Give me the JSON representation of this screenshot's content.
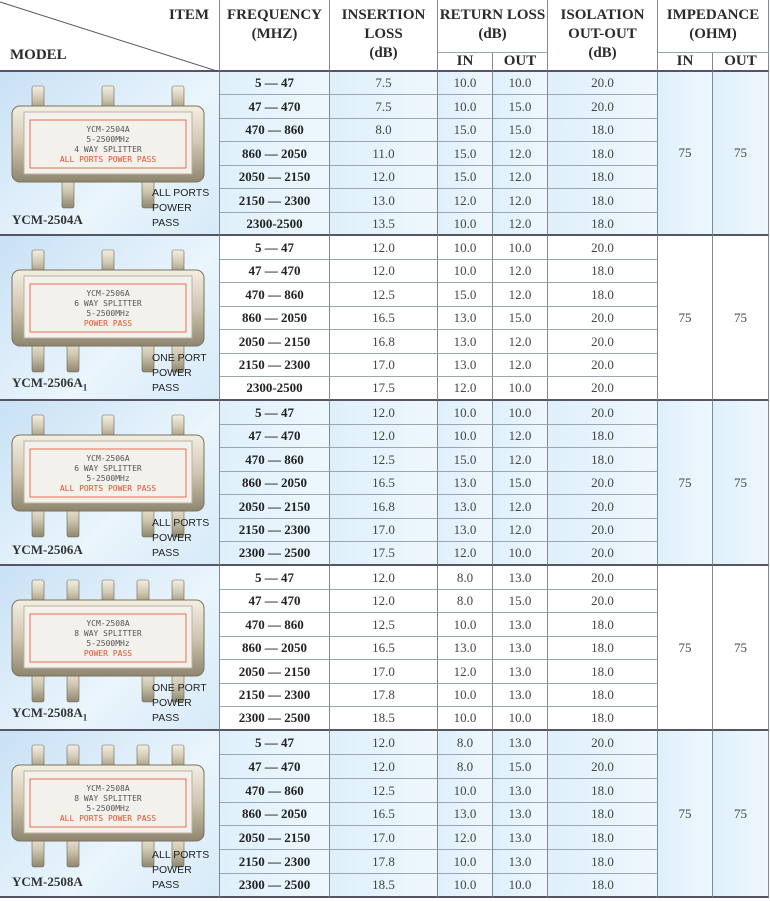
{
  "header": {
    "item": "ITEM",
    "model": "MODEL",
    "frequency": [
      "FREQUENCY",
      "(MHZ)"
    ],
    "insertion_loss": [
      "INSERTION",
      "LOSS",
      "(dB)"
    ],
    "return_loss": [
      "RETURN LOSS",
      "(dB)"
    ],
    "isolation": [
      "ISOLATION",
      "OUT-OUT",
      "(dB)"
    ],
    "impedance": [
      "IMPEDANCE",
      "(OHM)"
    ],
    "in": "IN",
    "out": "OUT"
  },
  "colors": {
    "shaded": "#dff0fb",
    "border": "#7f8a94",
    "label_red": "#e0502a"
  },
  "groups": [
    {
      "model": "YCM-2504A",
      "sub": "",
      "power_pass": [
        "ALL PORTS",
        "POWER PASS"
      ],
      "shaded": true,
      "device": {
        "top_ports": 3,
        "bottom_ports": 2,
        "label": [
          "YCM-2504A",
          "5-2500MHz",
          "4 WAY SPLITTER",
          "ALL PORTS POWER PASS"
        ]
      },
      "impedance_in": "75",
      "impedance_out": "75",
      "rows": [
        {
          "freq": "5 — 47",
          "il": "7.5",
          "rl_in": "10.0",
          "rl_out": "10.0",
          "iso": "20.0"
        },
        {
          "freq": "47 — 470",
          "il": "7.5",
          "rl_in": "10.0",
          "rl_out": "15.0",
          "iso": "20.0"
        },
        {
          "freq": "470 — 860",
          "il": "8.0",
          "rl_in": "15.0",
          "rl_out": "15.0",
          "iso": "18.0"
        },
        {
          "freq": "860 — 2050",
          "il": "11.0",
          "rl_in": "15.0",
          "rl_out": "12.0",
          "iso": "18.0"
        },
        {
          "freq": "2050 — 2150",
          "il": "12.0",
          "rl_in": "15.0",
          "rl_out": "12.0",
          "iso": "18.0"
        },
        {
          "freq": "2150 — 2300",
          "il": "13.0",
          "rl_in": "12.0",
          "rl_out": "12.0",
          "iso": "18.0"
        },
        {
          "freq": "2300-2500",
          "il": "13.5",
          "rl_in": "10.0",
          "rl_out": "12.0",
          "iso": "18.0"
        }
      ]
    },
    {
      "model": "YCM-2506A",
      "sub": "1",
      "power_pass": [
        "ONE PORT",
        "POWER PASS"
      ],
      "shaded": false,
      "device": {
        "top_ports": 3,
        "bottom_ports": 4,
        "label": [
          "YCM-2506A",
          "6 WAY SPLITTER",
          "5-2500MHz",
          "POWER PASS"
        ]
      },
      "impedance_in": "75",
      "impedance_out": "75",
      "rows": [
        {
          "freq": "5 — 47",
          "il": "12.0",
          "rl_in": "10.0",
          "rl_out": "10.0",
          "iso": "20.0"
        },
        {
          "freq": "47 — 470",
          "il": "12.0",
          "rl_in": "10.0",
          "rl_out": "12.0",
          "iso": "18.0"
        },
        {
          "freq": "470 — 860",
          "il": "12.5",
          "rl_in": "15.0",
          "rl_out": "12.0",
          "iso": "18.0"
        },
        {
          "freq": "860 — 2050",
          "il": "16.5",
          "rl_in": "13.0",
          "rl_out": "15.0",
          "iso": "20.0"
        },
        {
          "freq": "2050 — 2150",
          "il": "16.8",
          "rl_in": "13.0",
          "rl_out": "12.0",
          "iso": "20.0"
        },
        {
          "freq": "2150 — 2300",
          "il": "17.0",
          "rl_in": "13.0",
          "rl_out": "12.0",
          "iso": "20.0"
        },
        {
          "freq": "2300-2500",
          "il": "17.5",
          "rl_in": "12.0",
          "rl_out": "10.0",
          "iso": "20.0"
        }
      ]
    },
    {
      "model": "YCM-2506A",
      "sub": "",
      "power_pass": [
        "ALL PORTS",
        "POWER PASS"
      ],
      "shaded": true,
      "device": {
        "top_ports": 3,
        "bottom_ports": 4,
        "label": [
          "YCM-2506A",
          "6 WAY SPLITTER",
          "5-2500MHz",
          "ALL PORTS POWER PASS"
        ]
      },
      "impedance_in": "75",
      "impedance_out": "75",
      "rows": [
        {
          "freq": "5 — 47",
          "il": "12.0",
          "rl_in": "10.0",
          "rl_out": "10.0",
          "iso": "20.0"
        },
        {
          "freq": "47 — 470",
          "il": "12.0",
          "rl_in": "10.0",
          "rl_out": "12.0",
          "iso": "18.0"
        },
        {
          "freq": "470 — 860",
          "il": "12.5",
          "rl_in": "15.0",
          "rl_out": "12.0",
          "iso": "18.0"
        },
        {
          "freq": "860 — 2050",
          "il": "16.5",
          "rl_in": "13.0",
          "rl_out": "15.0",
          "iso": "20.0"
        },
        {
          "freq": "2050 — 2150",
          "il": "16.8",
          "rl_in": "13.0",
          "rl_out": "12.0",
          "iso": "20.0"
        },
        {
          "freq": "2150 — 2300",
          "il": "17.0",
          "rl_in": "13.0",
          "rl_out": "12.0",
          "iso": "20.0"
        },
        {
          "freq": "2300 — 2500",
          "il": "17.5",
          "rl_in": "12.0",
          "rl_out": "10.0",
          "iso": "20.0"
        }
      ]
    },
    {
      "model": "YCM-2508A",
      "sub": "1",
      "power_pass": [
        "ONE PORT",
        "POWER PASS"
      ],
      "shaded": false,
      "device": {
        "top_ports": 5,
        "bottom_ports": 4,
        "label": [
          "YCM-2508A",
          "8 WAY SPLITTER",
          "5-2500MHz",
          "POWER PASS"
        ]
      },
      "impedance_in": "75",
      "impedance_out": "75",
      "rows": [
        {
          "freq": "5 — 47",
          "il": "12.0",
          "rl_in": "8.0",
          "rl_out": "13.0",
          "iso": "20.0"
        },
        {
          "freq": "47 — 470",
          "il": "12.0",
          "rl_in": "8.0",
          "rl_out": "15.0",
          "iso": "20.0"
        },
        {
          "freq": "470 — 860",
          "il": "12.5",
          "rl_in": "10.0",
          "rl_out": "13.0",
          "iso": "18.0"
        },
        {
          "freq": "860 — 2050",
          "il": "16.5",
          "rl_in": "13.0",
          "rl_out": "13.0",
          "iso": "18.0"
        },
        {
          "freq": "2050 — 2150",
          "il": "17.0",
          "rl_in": "12.0",
          "rl_out": "13.0",
          "iso": "18.0"
        },
        {
          "freq": "2150 — 2300",
          "il": "17.8",
          "rl_in": "10.0",
          "rl_out": "13.0",
          "iso": "18.0"
        },
        {
          "freq": "2300 — 2500",
          "il": "18.5",
          "rl_in": "10.0",
          "rl_out": "10.0",
          "iso": "18.0"
        }
      ]
    },
    {
      "model": "YCM-2508A",
      "sub": "",
      "power_pass": [
        "ALL PORTS",
        "POWER PASS"
      ],
      "shaded": true,
      "device": {
        "top_ports": 5,
        "bottom_ports": 4,
        "label": [
          "YCM-2508A",
          "8 WAY SPLITTER",
          "5-2500MHz",
          "ALL PORTS POWER PASS"
        ]
      },
      "impedance_in": "75",
      "impedance_out": "75",
      "rows": [
        {
          "freq": "5 — 47",
          "il": "12.0",
          "rl_in": "8.0",
          "rl_out": "13.0",
          "iso": "20.0"
        },
        {
          "freq": "47 — 470",
          "il": "12.0",
          "rl_in": "8.0",
          "rl_out": "15.0",
          "iso": "20.0"
        },
        {
          "freq": "470 — 860",
          "il": "12.5",
          "rl_in": "10.0",
          "rl_out": "13.0",
          "iso": "18.0"
        },
        {
          "freq": "860 — 2050",
          "il": "16.5",
          "rl_in": "13.0",
          "rl_out": "13.0",
          "iso": "18.0"
        },
        {
          "freq": "2050 — 2150",
          "il": "17.0",
          "rl_in": "12.0",
          "rl_out": "13.0",
          "iso": "18.0"
        },
        {
          "freq": "2150 — 2300",
          "il": "17.8",
          "rl_in": "10.0",
          "rl_out": "13.0",
          "iso": "18.0"
        },
        {
          "freq": "2300 — 2500",
          "il": "18.5",
          "rl_in": "10.0",
          "rl_out": "10.0",
          "iso": "18.0"
        }
      ]
    }
  ]
}
